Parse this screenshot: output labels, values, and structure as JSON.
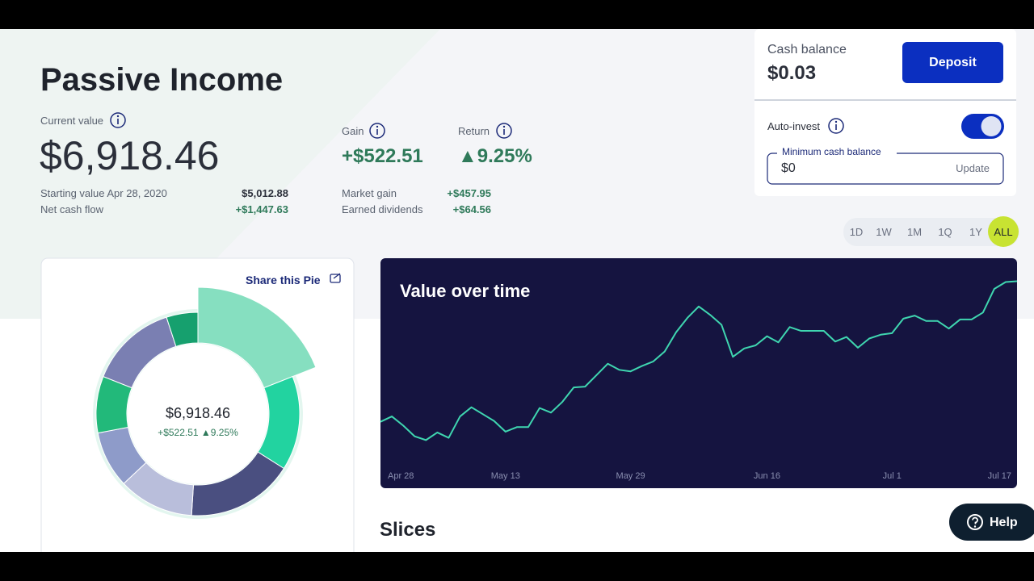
{
  "header": {
    "title": "Passive Income"
  },
  "summary": {
    "current_label": "Current value",
    "current_value": "$6,918.46",
    "starting_label": "Starting value Apr 28, 2020",
    "starting_value": "$5,012.88",
    "net_cash_label": "Net cash flow",
    "net_cash_value": "+$1,447.63",
    "gain_label": "Gain",
    "gain_value": "+$522.51",
    "return_label": "Return",
    "return_value": "▲9.25%",
    "market_gain_label": "Market gain",
    "market_gain_value": "+$457.95",
    "dividends_label": "Earned dividends",
    "dividends_value": "+$64.56"
  },
  "cash_panel": {
    "cash_label": "Cash balance",
    "cash_value": "$0.03",
    "deposit_button": "Deposit",
    "auto_invest_label": "Auto-invest",
    "min_cash_label": "Minimum cash balance",
    "min_cash_value": "$0",
    "update_button": "Update"
  },
  "ranges": {
    "options": [
      "1D",
      "1W",
      "1M",
      "1Q",
      "1Y",
      "ALL"
    ],
    "active": 5
  },
  "pie_card": {
    "share_label": "Share this Pie"
  },
  "slices_heading": "Slices",
  "help_button": "Help",
  "chart_data": [
    {
      "type": "pie",
      "center_label": "$6,918.46",
      "center_sublabel": "+$522.51 ▲9.25%",
      "values": [
        19,
        15,
        17,
        12,
        9,
        9,
        14,
        5
      ],
      "colors": [
        "#86dfc0",
        "#22d3a0",
        "#4a4f80",
        "#b9bedb",
        "#8e9bc9",
        "#22b97a",
        "#7a7fb2",
        "#16a06e"
      ],
      "highlighted": 0
    },
    {
      "type": "line",
      "title": "Value over time",
      "color": "#3fd6b0",
      "categories": [
        "Apr 28",
        null,
        null,
        null,
        null,
        null,
        null,
        null,
        null,
        null,
        null,
        "May 13",
        null,
        null,
        null,
        null,
        null,
        null,
        null,
        null,
        null,
        null,
        "May 29",
        null,
        null,
        null,
        null,
        null,
        null,
        null,
        null,
        null,
        null,
        null,
        "Jun 16",
        null,
        null,
        null,
        null,
        null,
        null,
        null,
        null,
        null,
        null,
        "Jul 1",
        null,
        null,
        null,
        null,
        null,
        null,
        null,
        null,
        null,
        null,
        "Jul 17"
      ],
      "values": [
        5070,
        5140,
        5020,
        4880,
        4830,
        4930,
        4860,
        5140,
        5260,
        5170,
        5080,
        4940,
        5000,
        5000,
        5250,
        5190,
        5330,
        5520,
        5530,
        5680,
        5830,
        5750,
        5730,
        5800,
        5860,
        5990,
        6240,
        6430,
        6580,
        6470,
        6340,
        5920,
        6030,
        6070,
        6190,
        6110,
        6310,
        6260,
        6260,
        6260,
        6120,
        6180,
        6040,
        6160,
        6210,
        6230,
        6420,
        6460,
        6390,
        6390,
        6290,
        6410,
        6410,
        6500,
        6810,
        6900,
        6910
      ],
      "ylim": [
        4200,
        7000
      ]
    }
  ]
}
